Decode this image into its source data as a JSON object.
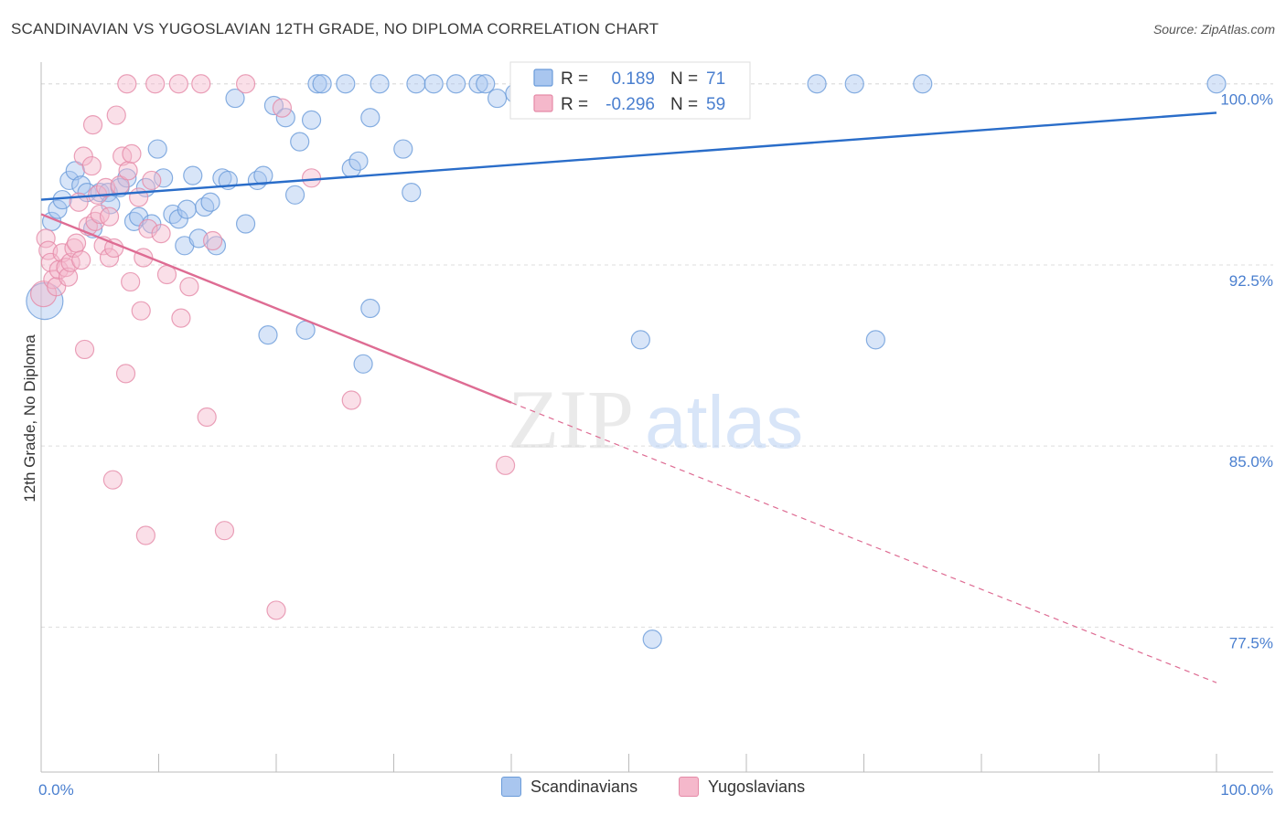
{
  "title": "SCANDINAVIAN VS YUGOSLAVIAN 12TH GRADE, NO DIPLOMA CORRELATION CHART",
  "source": "Source: ZipAtlas.com",
  "watermark": {
    "zip": "ZIP",
    "atlas": "atlas"
  },
  "colors": {
    "blue_fill": "#a9c6ef",
    "blue_stroke": "#6a9bd9",
    "blue_line": "#2a6dc9",
    "pink_fill": "#f5b8cb",
    "pink_stroke": "#e58aa7",
    "pink_line": "#de6c93",
    "tick_label": "#4a7fcf",
    "grid": "#dddddd"
  },
  "legend_top": {
    "rows": [
      {
        "series": "blue",
        "r_label": "R =",
        "r_value": "0.189",
        "n_label": "N =",
        "n_value": "71"
      },
      {
        "series": "pink",
        "r_label": "R =",
        "r_value": "-0.296",
        "n_label": "N =",
        "n_value": "59"
      }
    ]
  },
  "legend_bottom": [
    {
      "series": "blue",
      "label": "Scandinavians"
    },
    {
      "series": "pink",
      "label": "Yugoslavians"
    }
  ],
  "chart_data": {
    "type": "scatter",
    "title": "SCANDINAVIAN VS YUGOSLAVIAN 12TH GRADE, NO DIPLOMA CORRELATION CHART",
    "xlabel": "",
    "ylabel": "12th Grade, No Diploma",
    "xlim": [
      0,
      100
    ],
    "ylim": [
      71.5,
      101.2
    ],
    "x_tick_labels": [
      {
        "value": 0,
        "label": "0.0%"
      },
      {
        "value": 100,
        "label": "100.0%"
      }
    ],
    "x_minor_ticks": [
      10,
      20,
      30,
      40,
      50,
      60,
      70,
      80,
      90,
      100
    ],
    "y_ticks": [
      {
        "value": 100,
        "label": "100.0%"
      },
      {
        "value": 92.5,
        "label": "92.5%"
      },
      {
        "value": 85,
        "label": "85.0%"
      },
      {
        "value": 77.5,
        "label": "77.5%"
      }
    ],
    "grid": true,
    "legend_placement": "top-center",
    "series": [
      {
        "name": "Scandinavians",
        "color": "blue",
        "r": 0.189,
        "n": 71,
        "trend": {
          "x": [
            0,
            100
          ],
          "y": [
            95.2,
            98.8
          ]
        },
        "points": [
          [
            0.3,
            91.0,
            20
          ],
          [
            0.9,
            94.3,
            10
          ],
          [
            1.4,
            94.8,
            10
          ],
          [
            1.8,
            95.2,
            10
          ],
          [
            2.4,
            96.0,
            10
          ],
          [
            2.9,
            96.4,
            10
          ],
          [
            3.4,
            95.8,
            10
          ],
          [
            3.9,
            95.5,
            10
          ],
          [
            4.4,
            94.0,
            10
          ],
          [
            5.0,
            95.5,
            10
          ],
          [
            5.7,
            95.5,
            10
          ],
          [
            5.9,
            95.0,
            10
          ],
          [
            6.7,
            95.7,
            10
          ],
          [
            7.3,
            96.1,
            10
          ],
          [
            7.9,
            94.3,
            10
          ],
          [
            8.3,
            94.5,
            10
          ],
          [
            8.9,
            95.7,
            10
          ],
          [
            9.4,
            94.2,
            10
          ],
          [
            9.9,
            97.3,
            10
          ],
          [
            10.4,
            96.1,
            10
          ],
          [
            11.2,
            94.6,
            10
          ],
          [
            11.7,
            94.4,
            10
          ],
          [
            12.2,
            93.3,
            10
          ],
          [
            12.4,
            94.8,
            10
          ],
          [
            12.9,
            96.2,
            10
          ],
          [
            13.4,
            93.6,
            10
          ],
          [
            13.9,
            94.9,
            10
          ],
          [
            14.4,
            95.1,
            10
          ],
          [
            14.9,
            93.3,
            10
          ],
          [
            15.4,
            96.1,
            10
          ],
          [
            15.9,
            96.0,
            10
          ],
          [
            16.5,
            99.4,
            10
          ],
          [
            17.4,
            94.2,
            10
          ],
          [
            18.4,
            96.0,
            10
          ],
          [
            18.9,
            96.2,
            10
          ],
          [
            19.3,
            89.6,
            10
          ],
          [
            19.8,
            99.1,
            10
          ],
          [
            20.8,
            98.6,
            10
          ],
          [
            21.6,
            95.4,
            10
          ],
          [
            22.0,
            97.6,
            10
          ],
          [
            22.5,
            89.8,
            10
          ],
          [
            23.0,
            98.5,
            10
          ],
          [
            23.5,
            100.0,
            10
          ],
          [
            23.9,
            100.0,
            10
          ],
          [
            25.9,
            100.0,
            10
          ],
          [
            26.4,
            96.5,
            10
          ],
          [
            27.0,
            96.8,
            10
          ],
          [
            27.4,
            88.4,
            10
          ],
          [
            28.0,
            98.6,
            10
          ],
          [
            28.0,
            90.7,
            10
          ],
          [
            28.8,
            100.0,
            10
          ],
          [
            30.8,
            97.3,
            10
          ],
          [
            31.5,
            95.5,
            10
          ],
          [
            31.9,
            100.0,
            10
          ],
          [
            33.4,
            100.0,
            10
          ],
          [
            35.3,
            100.0,
            10
          ],
          [
            37.2,
            100.0,
            10
          ],
          [
            37.8,
            100.0,
            10
          ],
          [
            38.8,
            99.4,
            10
          ],
          [
            40.3,
            99.6,
            10
          ],
          [
            42.0,
            100.0,
            10
          ],
          [
            44.0,
            100.0,
            10
          ],
          [
            44.5,
            99.7,
            10
          ],
          [
            46.0,
            99.5,
            10
          ],
          [
            51.0,
            89.4,
            10
          ],
          [
            52.0,
            77.0,
            10
          ],
          [
            66.0,
            100.0,
            10
          ],
          [
            71.0,
            89.4,
            10
          ],
          [
            69.2,
            100.0,
            10
          ],
          [
            75.0,
            100.0,
            10
          ],
          [
            100.0,
            100.0,
            10
          ]
        ]
      },
      {
        "name": "Yugoslavians",
        "color": "pink",
        "r": -0.296,
        "n": 59,
        "trend": {
          "x": [
            0,
            40
          ],
          "y": [
            94.6,
            86.8
          ]
        },
        "trend_extended": {
          "x": [
            40,
            100
          ],
          "y": [
            86.8,
            75.2
          ]
        },
        "points": [
          [
            0.2,
            91.3,
            14
          ],
          [
            0.4,
            93.6,
            10
          ],
          [
            0.6,
            93.1,
            10
          ],
          [
            0.8,
            92.6,
            10
          ],
          [
            1.0,
            91.9,
            10
          ],
          [
            1.3,
            91.6,
            10
          ],
          [
            1.5,
            92.3,
            10
          ],
          [
            1.8,
            93.0,
            10
          ],
          [
            2.1,
            92.4,
            10
          ],
          [
            2.3,
            92.0,
            10
          ],
          [
            2.5,
            92.6,
            10
          ],
          [
            2.8,
            93.2,
            10
          ],
          [
            3.0,
            93.4,
            10
          ],
          [
            3.2,
            95.1,
            10
          ],
          [
            3.4,
            92.7,
            10
          ],
          [
            3.6,
            97.0,
            10
          ],
          [
            3.7,
            89.0,
            10
          ],
          [
            4.0,
            94.1,
            10
          ],
          [
            4.3,
            96.6,
            10
          ],
          [
            4.4,
            98.3,
            10
          ],
          [
            4.6,
            94.3,
            10
          ],
          [
            4.8,
            95.4,
            10
          ],
          [
            5.0,
            94.6,
            10
          ],
          [
            5.3,
            93.3,
            10
          ],
          [
            5.5,
            95.7,
            10
          ],
          [
            5.8,
            94.5,
            10
          ],
          [
            5.8,
            92.8,
            10
          ],
          [
            6.2,
            93.2,
            10
          ],
          [
            6.1,
            83.6,
            10
          ],
          [
            6.4,
            98.7,
            10
          ],
          [
            6.7,
            95.8,
            10
          ],
          [
            6.9,
            97.0,
            10
          ],
          [
            7.2,
            88.0,
            10
          ],
          [
            7.4,
            96.4,
            10
          ],
          [
            7.6,
            91.8,
            10
          ],
          [
            7.7,
            97.1,
            10
          ],
          [
            8.3,
            95.3,
            10
          ],
          [
            8.5,
            90.6,
            10
          ],
          [
            8.7,
            92.8,
            10
          ],
          [
            8.9,
            81.3,
            10
          ],
          [
            9.1,
            94.0,
            10
          ],
          [
            9.4,
            96.0,
            10
          ],
          [
            9.7,
            100.0,
            10
          ],
          [
            10.2,
            93.8,
            10
          ],
          [
            10.7,
            92.1,
            10
          ],
          [
            11.7,
            100.0,
            10
          ],
          [
            11.9,
            90.3,
            10
          ],
          [
            12.6,
            91.6,
            10
          ],
          [
            13.6,
            100.0,
            10
          ],
          [
            14.1,
            86.2,
            10
          ],
          [
            14.6,
            93.5,
            10
          ],
          [
            15.6,
            81.5,
            10
          ],
          [
            17.4,
            100.0,
            10
          ],
          [
            20.0,
            78.2,
            10
          ],
          [
            20.5,
            99.0,
            10
          ],
          [
            23.0,
            96.1,
            10
          ],
          [
            26.4,
            86.9,
            10
          ],
          [
            39.5,
            84.2,
            10
          ],
          [
            7.3,
            100.0,
            10
          ]
        ]
      }
    ]
  }
}
